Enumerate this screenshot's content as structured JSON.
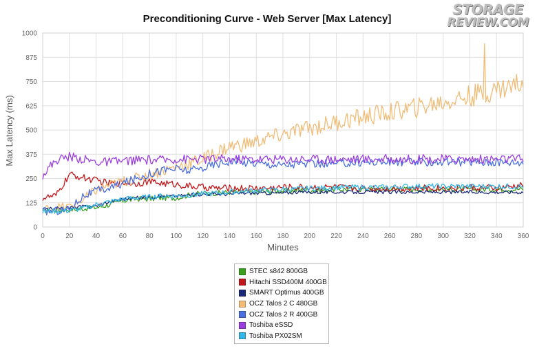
{
  "logo": {
    "top": "STORAGE",
    "bottom": "REVIEW.COM"
  },
  "chart_data": {
    "type": "line",
    "title": "Preconditioning Curve - Web Server [Max Latency]",
    "xlabel": "Minutes",
    "ylabel": "Max Latency (ms)",
    "xlim": [
      0,
      360
    ],
    "ylim": [
      0,
      1000
    ],
    "xticks": [
      0,
      20,
      40,
      60,
      80,
      100,
      120,
      140,
      160,
      180,
      200,
      220,
      240,
      260,
      280,
      300,
      320,
      340,
      360
    ],
    "yticks": [
      0,
      125,
      250,
      375,
      500,
      625,
      750,
      875,
      1000
    ],
    "grid": true,
    "legend_position": "bottom-center",
    "x": [
      0,
      10,
      20,
      30,
      40,
      50,
      60,
      70,
      80,
      90,
      100,
      110,
      120,
      130,
      140,
      150,
      160,
      170,
      180,
      190,
      200,
      210,
      220,
      230,
      240,
      250,
      260,
      270,
      280,
      290,
      300,
      310,
      320,
      330,
      340,
      350,
      360
    ],
    "series": [
      {
        "name": "STEC s842 800GB",
        "color": "#3a9e1e",
        "values": [
          85,
          88,
          90,
          95,
          100,
          115,
          135,
          145,
          145,
          150,
          150,
          165,
          175,
          175,
          180,
          180,
          180,
          185,
          185,
          190,
          190,
          190,
          195,
          195,
          195,
          195,
          195,
          195,
          195,
          195,
          195,
          195,
          195,
          195,
          195,
          195,
          195
        ]
      },
      {
        "name": "Hitachi SSD400M 400GB",
        "color": "#c0181c",
        "values": [
          150,
          160,
          270,
          255,
          240,
          225,
          230,
          225,
          235,
          225,
          220,
          210,
          205,
          200,
          200,
          200,
          200,
          200,
          205,
          205,
          205,
          205,
          205,
          200,
          200,
          200,
          200,
          200,
          200,
          200,
          200,
          200,
          205,
          200,
          200,
          205,
          215
        ]
      },
      {
        "name": "SMART Optimus 400GB",
        "color": "#1a2878",
        "values": [
          90,
          95,
          100,
          105,
          110,
          130,
          145,
          150,
          155,
          160,
          160,
          165,
          170,
          170,
          170,
          175,
          175,
          175,
          175,
          180,
          180,
          180,
          180,
          180,
          180,
          180,
          180,
          180,
          180,
          180,
          180,
          180,
          180,
          180,
          180,
          180,
          180
        ]
      },
      {
        "name": "OCZ Talos 2 C 480GB",
        "color": "#f1bc76",
        "values": [
          90,
          100,
          105,
          140,
          190,
          215,
          235,
          250,
          275,
          290,
          310,
          330,
          350,
          385,
          415,
          425,
          440,
          460,
          475,
          495,
          510,
          525,
          540,
          555,
          565,
          580,
          590,
          605,
          615,
          630,
          645,
          660,
          675,
          690,
          710,
          725,
          750
        ]
      },
      {
        "name": "OCZ Talos 2 R 400GB",
        "color": "#4a6ee0",
        "values": [
          80,
          85,
          90,
          160,
          185,
          200,
          225,
          250,
          275,
          295,
          300,
          290,
          305,
          325,
          340,
          335,
          330,
          325,
          320,
          325,
          325,
          325,
          325,
          330,
          335,
          335,
          335,
          335,
          335,
          335,
          335,
          335,
          335,
          335,
          335,
          335,
          335
        ]
      },
      {
        "name": "Toshiba eSSD",
        "color": "#9a3ee0",
        "values": [
          270,
          345,
          365,
          350,
          335,
          335,
          340,
          345,
          345,
          345,
          350,
          350,
          350,
          350,
          350,
          350,
          350,
          350,
          350,
          350,
          350,
          350,
          350,
          350,
          350,
          350,
          350,
          350,
          350,
          350,
          350,
          350,
          350,
          350,
          350,
          350,
          350
        ]
      },
      {
        "name": "Toshiba PX02SM",
        "color": "#33b5e5",
        "values": [
          80,
          82,
          85,
          95,
          115,
          130,
          145,
          150,
          155,
          160,
          160,
          165,
          170,
          175,
          180,
          185,
          190,
          190,
          195,
          195,
          200,
          200,
          205,
          205,
          205,
          205,
          205,
          210,
          210,
          210,
          210,
          210,
          210,
          210,
          210,
          210,
          210
        ]
      }
    ]
  }
}
